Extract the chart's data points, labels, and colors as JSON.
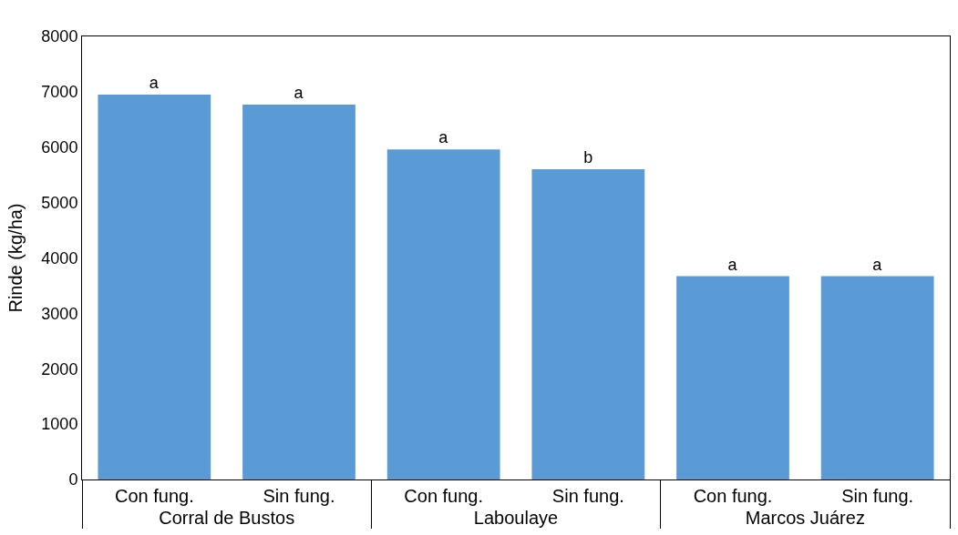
{
  "chart_data": {
    "type": "bar",
    "ylabel": "Rinde (kg/ha)",
    "categories": [
      "Con fung.",
      "Sin fung.",
      "Con fung.",
      "Sin fung.",
      "Con fung.",
      "Sin fung."
    ],
    "values": [
      6950,
      6770,
      5960,
      5600,
      3670,
      3670
    ],
    "value_labels": [
      "a",
      "a",
      "a",
      "b",
      "a",
      "a"
    ],
    "color": "#5b9bd5",
    "annotations": [
      "Corral de Bustos",
      "Laboulaye",
      "Marcos Juárez"
    ],
    "ylim": [
      0,
      8000
    ],
    "yticks": [
      0,
      1000,
      2000,
      3000,
      4000,
      5000,
      6000,
      7000,
      8000
    ],
    "legend": false
  }
}
